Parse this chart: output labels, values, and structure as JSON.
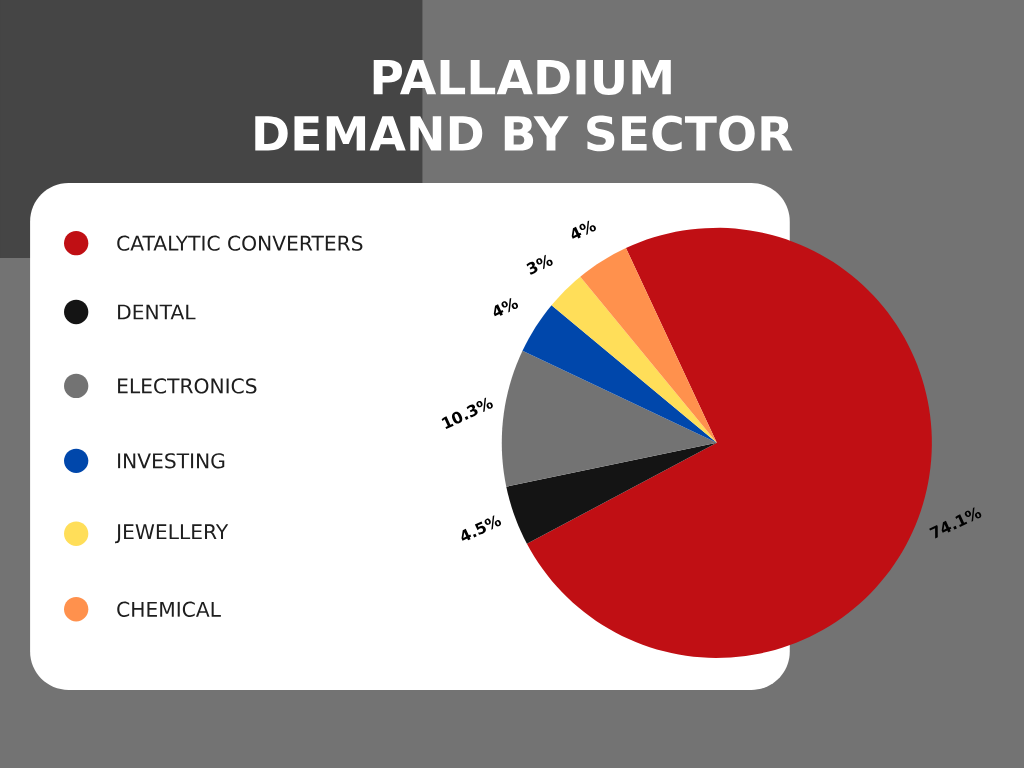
{
  "chart_data": {
    "type": "pie",
    "title": "PALLADIUM DEMAND BY SECTOR",
    "categories": [
      "CATALYTIC CONVERTERS",
      "DENTAL",
      "ELECTRONICS",
      "INVESTING",
      "JEWELLERY",
      "CHEMICAL"
    ],
    "values": [
      74.1,
      4.5,
      10.3,
      4,
      3,
      4
    ],
    "value_labels": [
      "74.1%",
      "4.5%",
      "10.3%",
      "4%",
      "3%",
      "4%"
    ],
    "colors": [
      "#c00f14",
      "#141414",
      "#737373",
      "#0047ab",
      "#ffde59",
      "#ff914d"
    ],
    "legend": "left"
  }
}
